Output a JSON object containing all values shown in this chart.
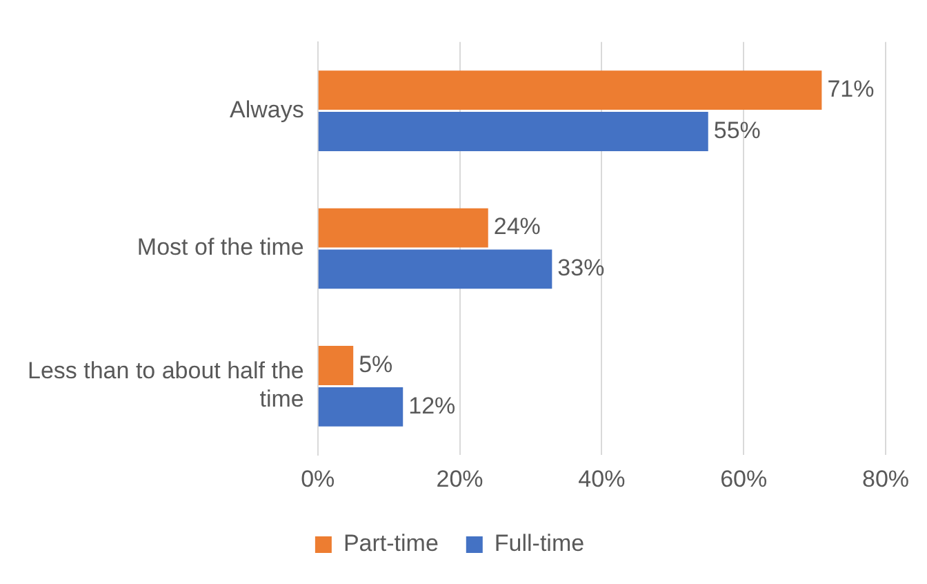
{
  "chart_data": {
    "type": "bar",
    "orientation": "horizontal",
    "categories": [
      "Always",
      "Most of the time",
      "Less than to about half the time"
    ],
    "series": [
      {
        "name": "Part-time",
        "color": "#ed7d31",
        "values": [
          71,
          24,
          5
        ],
        "value_labels": [
          "71%",
          "24%",
          "5%"
        ]
      },
      {
        "name": "Full-time",
        "color": "#4472c4",
        "values": [
          55,
          33,
          12
        ],
        "value_labels": [
          "55%",
          "33%",
          "12%"
        ]
      }
    ],
    "xlim": [
      0,
      80
    ],
    "xticks": [
      {
        "value": 0,
        "label": "0%"
      },
      {
        "value": 20,
        "label": "20%"
      },
      {
        "value": 40,
        "label": "40%"
      },
      {
        "value": 60,
        "label": "60%"
      },
      {
        "value": 80,
        "label": "80%"
      }
    ],
    "grid": "x",
    "legend": "bottom"
  }
}
